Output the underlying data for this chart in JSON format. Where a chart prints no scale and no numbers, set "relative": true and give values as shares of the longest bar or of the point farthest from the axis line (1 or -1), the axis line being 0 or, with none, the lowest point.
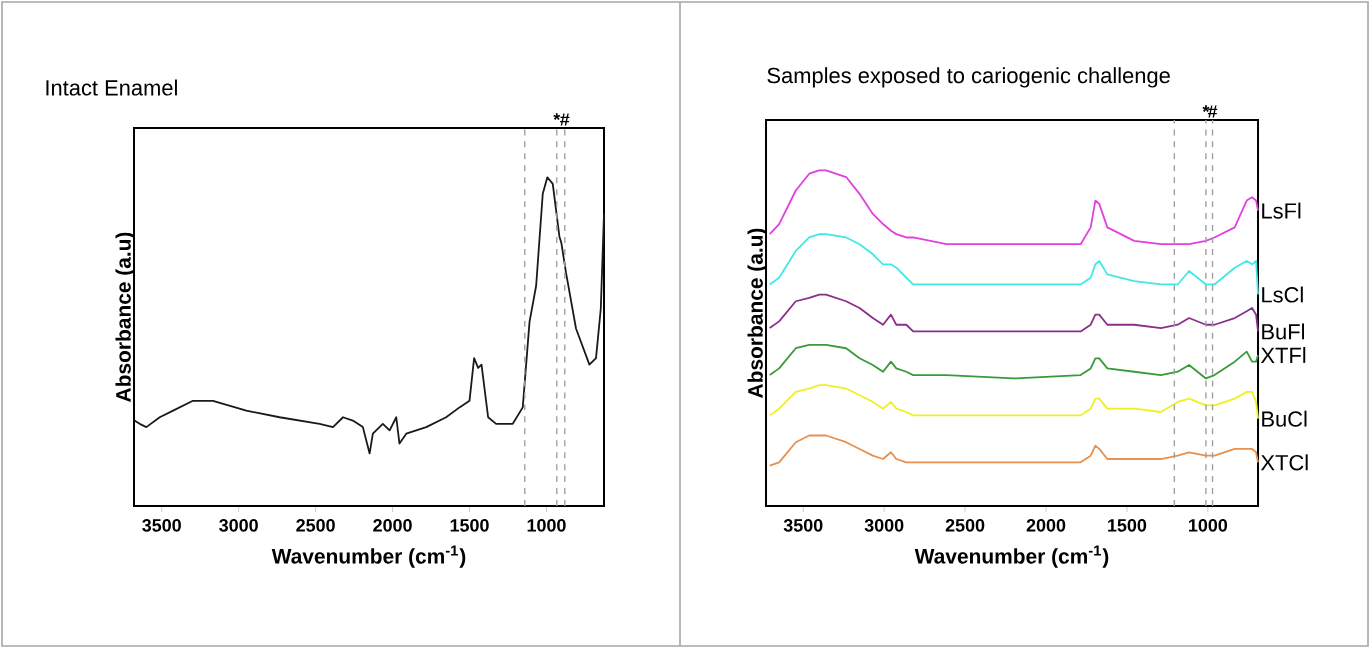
{
  "chart_data": [
    {
      "type": "line",
      "relative": true,
      "title": "Intact Enamel",
      "xlabel": "Wavenumber (cm$^{-1}$)",
      "ylabel": "Absorbance (a.u)",
      "xlim": [
        3680,
        626
      ],
      "xticks": [
        3500,
        3000,
        2500,
        2000,
        1500,
        1000
      ],
      "x": [
        3677,
        3643,
        3600,
        3513,
        3426,
        3297,
        3167,
        2950,
        2734,
        2474,
        2387,
        2322,
        2258,
        2193,
        2149,
        2128,
        2063,
        2019,
        1976,
        1955,
        1911,
        1781,
        1652,
        1565,
        1500,
        1470,
        1444,
        1422,
        1379,
        1327,
        1219,
        1154,
        1110,
        1067,
        1024,
        994,
        959,
        916,
        903,
        873,
        808,
        721,
        678,
        647,
        626
      ],
      "series": [
        {
          "color": "#1a1a1a",
          "values": [
            0.26,
            0.25,
            0.24,
            0.27,
            0.29,
            0.32,
            0.32,
            0.29,
            0.27,
            0.25,
            0.24,
            0.27,
            0.26,
            0.24,
            0.16,
            0.22,
            0.25,
            0.23,
            0.27,
            0.19,
            0.22,
            0.24,
            0.27,
            0.3,
            0.32,
            0.45,
            0.42,
            0.43,
            0.27,
            0.25,
            0.25,
            0.3,
            0.56,
            0.67,
            0.95,
            1.0,
            0.98,
            0.82,
            0.8,
            0.71,
            0.54,
            0.43,
            0.45,
            0.6,
            0.89
          ]
        }
      ],
      "ref_lines": [
        {
          "axis": "x",
          "value": 1141,
          "color": "#a0a0a0",
          "line_style": "dashed"
        },
        {
          "axis": "x",
          "value": 933,
          "label": "*",
          "color": "#a0a0a0",
          "line_style": "dashed"
        },
        {
          "axis": "x",
          "value": 881,
          "label": "#",
          "color": "#a0a0a0",
          "line_style": "dashed"
        }
      ]
    },
    {
      "type": "line",
      "relative": true,
      "title": "Samples exposed to cariogenic challenge",
      "xlabel": "Wavenumber (cm$^{-1}$)",
      "ylabel": "Absorbance (a.u)",
      "xlim": [
        3730,
        690
      ],
      "xticks": [
        3500,
        3000,
        2500,
        2000,
        1500,
        1000
      ],
      "x": [
        3707,
        3649,
        3546,
        3463,
        3401,
        3359,
        3235,
        3152,
        3070,
        3007,
        2958,
        2925,
        2863,
        2821,
        2614,
        2200,
        1786,
        1724,
        1695,
        1671,
        1621,
        1455,
        1290,
        1186,
        1116,
        1012,
        959,
        834,
        760,
        727,
        702,
        690
      ],
      "series": [
        {
          "name": "LsFl",
          "color": "#e040e0",
          "values": [
            0.81,
            0.84,
            0.94,
            0.99,
            1.0,
            1.0,
            0.98,
            0.93,
            0.87,
            0.84,
            0.82,
            0.81,
            0.8,
            0.8,
            0.78,
            0.78,
            0.78,
            0.83,
            0.91,
            0.9,
            0.83,
            0.79,
            0.78,
            0.78,
            0.78,
            0.79,
            0.8,
            0.83,
            0.91,
            0.92,
            0.91,
            0.88
          ]
        },
        {
          "name": "LsCl",
          "color": "#40e8e8",
          "values": [
            0.66,
            0.68,
            0.76,
            0.8,
            0.81,
            0.81,
            0.8,
            0.78,
            0.75,
            0.72,
            0.72,
            0.71,
            0.68,
            0.66,
            0.66,
            0.66,
            0.66,
            0.68,
            0.72,
            0.73,
            0.69,
            0.67,
            0.66,
            0.66,
            0.7,
            0.66,
            0.66,
            0.71,
            0.73,
            0.72,
            0.73,
            0.63
          ]
        },
        {
          "name": "BuFl",
          "color": "#8b2f8b",
          "values": [
            0.53,
            0.55,
            0.61,
            0.62,
            0.63,
            0.63,
            0.61,
            0.59,
            0.56,
            0.54,
            0.57,
            0.54,
            0.54,
            0.52,
            0.52,
            0.52,
            0.52,
            0.54,
            0.57,
            0.57,
            0.54,
            0.54,
            0.53,
            0.54,
            0.56,
            0.54,
            0.54,
            0.56,
            0.58,
            0.59,
            0.57,
            0.52
          ]
        },
        {
          "name": "XTFl",
          "color": "#3a9a3a",
          "values": [
            0.39,
            0.41,
            0.47,
            0.48,
            0.48,
            0.48,
            0.47,
            0.44,
            0.42,
            0.4,
            0.43,
            0.41,
            0.4,
            0.39,
            0.39,
            0.38,
            0.39,
            0.41,
            0.44,
            0.44,
            0.41,
            0.4,
            0.39,
            0.4,
            0.42,
            0.38,
            0.39,
            0.43,
            0.46,
            0.43,
            0.43,
            0.45
          ]
        },
        {
          "name": "BuCl",
          "color": "#f0f020",
          "values": [
            0.27,
            0.29,
            0.34,
            0.35,
            0.36,
            0.36,
            0.35,
            0.33,
            0.31,
            0.29,
            0.31,
            0.29,
            0.28,
            0.27,
            0.27,
            0.27,
            0.27,
            0.29,
            0.32,
            0.32,
            0.29,
            0.29,
            0.28,
            0.31,
            0.32,
            0.3,
            0.3,
            0.32,
            0.34,
            0.34,
            0.31,
            0.26
          ]
        },
        {
          "name": "XTCl",
          "color": "#e89050",
          "values": [
            0.12,
            0.13,
            0.19,
            0.21,
            0.21,
            0.21,
            0.19,
            0.17,
            0.15,
            0.14,
            0.16,
            0.14,
            0.13,
            0.13,
            0.13,
            0.13,
            0.13,
            0.15,
            0.18,
            0.17,
            0.14,
            0.14,
            0.14,
            0.15,
            0.16,
            0.15,
            0.15,
            0.17,
            0.17,
            0.17,
            0.16,
            0.13
          ]
        }
      ],
      "ref_lines": [
        {
          "axis": "x",
          "value": 1207,
          "color": "#a0a0a0",
          "line_style": "dashed"
        },
        {
          "axis": "x",
          "value": 1012,
          "label": "*",
          "color": "#a0a0a0",
          "line_style": "dashed"
        },
        {
          "axis": "x",
          "value": 971,
          "label": "#",
          "color": "#a0a0a0",
          "line_style": "dashed"
        }
      ]
    }
  ]
}
